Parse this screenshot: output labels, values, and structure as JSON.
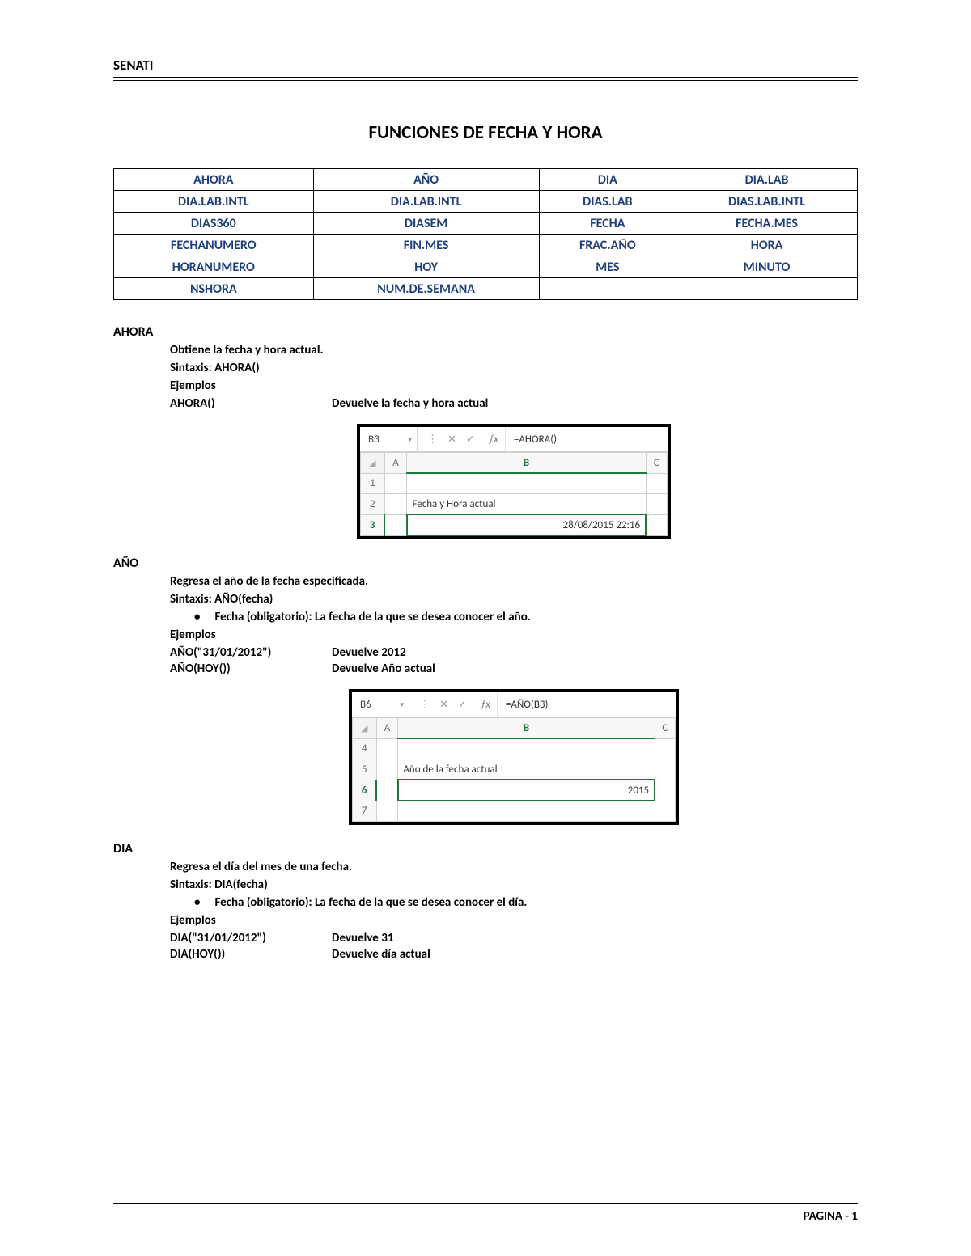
{
  "header": {
    "brand": "SENATI"
  },
  "title": "FUNCIONES DE FECHA Y HORA",
  "funcTable": {
    "rows": [
      [
        "AHORA",
        "AÑO",
        "DIA",
        "DIA.LAB"
      ],
      [
        "DIA.LAB.INTL",
        "DIA.LAB.INTL",
        "DIAS.LAB",
        "DIAS.LAB.INTL"
      ],
      [
        "DIAS360",
        "DIASEM",
        "FECHA",
        "FECHA.MES"
      ],
      [
        "FECHANUMERO",
        "FIN.MES",
        "FRAC.AÑO",
        "HORA"
      ],
      [
        "HORANUMERO",
        "HOY",
        "MES",
        "MINUTO"
      ],
      [
        "NSHORA",
        "NUM.DE.SEMANA",
        "",
        ""
      ]
    ],
    "cell_color": "#1f3f7a",
    "border_color": "#000000"
  },
  "sections": {
    "ahora": {
      "heading": "AHORA",
      "desc": "Obtiene la fecha y hora actual.",
      "syntax": "Sintaxis: AHORA()",
      "examplesLabel": "Ejemplos",
      "examples": [
        {
          "call": "AHORA()",
          "returns": "Devuelve la fecha y hora actual"
        }
      ],
      "excel": {
        "cellref": "B3",
        "formula": "=AHORA()",
        "cols": [
          "A",
          "B",
          "C"
        ],
        "selCol": "B",
        "rows": [
          "1",
          "2",
          "3"
        ],
        "selRow": "3",
        "b2": "Fecha y Hora actual",
        "b3": "28/08/2015 22:16"
      }
    },
    "anio": {
      "heading": "AÑO",
      "desc": "Regresa el año de la fecha especificada.",
      "syntax": "Sintaxis: AÑO(fecha)",
      "bullet": "Fecha (obligatorio): La fecha de la que se desea conocer el año.",
      "examplesLabel": "Ejemplos",
      "examples": [
        {
          "call": "AÑO(\"31/01/2012\")",
          "returns": "Devuelve 2012"
        },
        {
          "call": "AÑO(HOY())",
          "returns": "Devuelve Año actual"
        }
      ],
      "excel": {
        "cellref": "B6",
        "formula": "=AÑO(B3)",
        "cols": [
          "A",
          "B",
          "C"
        ],
        "selCol": "B",
        "rows": [
          "4",
          "5",
          "6",
          "7"
        ],
        "selRow": "6",
        "b5": "Año de la fecha actual",
        "b6": "2015"
      }
    },
    "dia": {
      "heading": "DIA",
      "desc": "Regresa el día del mes de una fecha.",
      "syntax": "Sintaxis: DIA(fecha)",
      "bullet": "Fecha (obligatorio): La fecha de la que se desea conocer el día.",
      "examplesLabel": "Ejemplos",
      "examples": [
        {
          "call": "DIA(\"31/01/2012\")",
          "returns": "Devuelve 31"
        },
        {
          "call": "DIA(HOY())",
          "returns": "Devuelve día actual"
        }
      ]
    }
  },
  "footer": {
    "text": "PAGINA - 1"
  },
  "colors": {
    "link_blue": "#1f3f7a",
    "excel_green": "#1a7a3a",
    "grid_gray": "#cfcfcf"
  }
}
